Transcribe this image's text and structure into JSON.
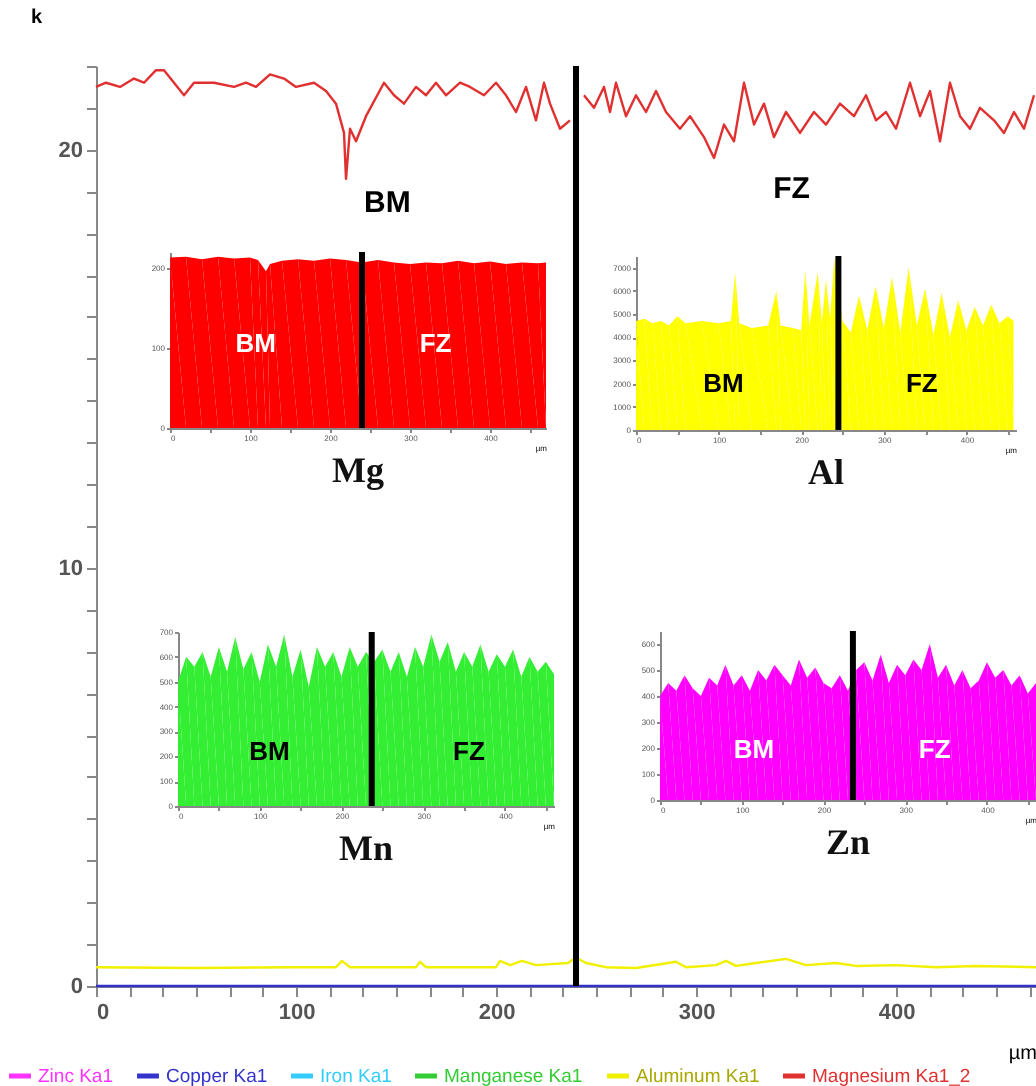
{
  "chart_data": [
    {
      "type": "line",
      "ylabel": "k",
      "xlabel": "µm",
      "legend": "bottom",
      "grid": false,
      "xlim": [
        0,
        470
      ],
      "ylim": [
        0,
        22
      ],
      "xticks": [
        0,
        {
          "value": 16.7,
          "label": null
        },
        {
          "value": 33.3,
          "label": null
        },
        {
          "value": 50,
          "label": null
        },
        {
          "value": 66.7,
          "label": null
        },
        {
          "value": 83.3,
          "label": null
        },
        100,
        {
          "value": 116.7,
          "label": null
        },
        {
          "value": 133.3,
          "label": null
        },
        {
          "value": 150,
          "label": null
        },
        {
          "value": 166.7,
          "label": null
        },
        {
          "value": 183.3,
          "label": null
        },
        200,
        {
          "value": 216.7,
          "label": null
        },
        {
          "value": 233.3,
          "label": null
        },
        {
          "value": 250,
          "label": null
        },
        {
          "value": 266.7,
          "label": null
        },
        {
          "value": 283.3,
          "label": null
        },
        300,
        {
          "value": 316.7,
          "label": null
        },
        {
          "value": 333.3,
          "label": null
        },
        {
          "value": 350,
          "label": null
        },
        {
          "value": 366.7,
          "label": null
        },
        {
          "value": 383.3,
          "label": null
        },
        400,
        {
          "value": 416.7,
          "label": null
        },
        {
          "value": 433.3,
          "label": null
        },
        {
          "value": 450,
          "label": null
        },
        {
          "value": 466.7,
          "label": null
        }
      ],
      "yticks": [
        0,
        {
          "value": 1,
          "label": null
        },
        {
          "value": 2,
          "label": null
        },
        {
          "value": 3,
          "label": null
        },
        {
          "value": 4,
          "label": null
        },
        {
          "value": 5,
          "label": null
        },
        {
          "value": 6,
          "label": null
        },
        {
          "value": 7,
          "label": null
        },
        {
          "value": 8,
          "label": null
        },
        {
          "value": 9,
          "label": null
        },
        10,
        {
          "value": 11,
          "label": null
        },
        {
          "value": 12,
          "label": null
        },
        {
          "value": 13,
          "label": null
        },
        {
          "value": 14,
          "label": null
        },
        {
          "value": 15,
          "label": null
        },
        {
          "value": 16,
          "label": null
        },
        {
          "value": 17,
          "label": null
        },
        {
          "value": 18,
          "label": null
        },
        {
          "value": 19,
          "label": null
        },
        20,
        {
          "value": 21,
          "label": null
        },
        {
          "value": 22,
          "label": null
        }
      ],
      "series": [
        {
          "name": "Zinc Ka1",
          "color": "#ff33ff"
        },
        {
          "name": "Copper Ka1",
          "color": "#3333cc",
          "x": [
            0,
            470
          ],
          "values": [
            0,
            0
          ]
        },
        {
          "name": "Iron Ka1",
          "color": "#33ccff"
        },
        {
          "name": "Manganese Ka1",
          "color": "#33cc33"
        },
        {
          "name": "Aluminum Ka1",
          "color": "#f0f000",
          "x": [
            0,
            50,
            100,
            120,
            123,
            127,
            160,
            162,
            165,
            200,
            202,
            207,
            213,
            220,
            236,
            240,
            245,
            255,
            270,
            290,
            295,
            310,
            315,
            320,
            330,
            345,
            355,
            370,
            380,
            400,
            420,
            440,
            470
          ],
          "values": [
            0.45,
            0.43,
            0.45,
            0.45,
            0.6,
            0.45,
            0.45,
            0.58,
            0.45,
            0.45,
            0.6,
            0.5,
            0.6,
            0.5,
            0.55,
            0.68,
            0.55,
            0.45,
            0.43,
            0.58,
            0.45,
            0.5,
            0.6,
            0.48,
            0.55,
            0.65,
            0.5,
            0.55,
            0.48,
            0.5,
            0.45,
            0.48,
            0.45
          ]
        },
        {
          "name": "Magnesium Ka1_2",
          "color": "#e03030",
          "x": [
            0,
            5,
            12,
            19,
            24,
            30,
            34,
            39,
            44,
            49,
            59,
            69,
            75,
            80,
            87,
            94,
            100,
            109,
            115,
            120,
            124,
            125,
            127,
            130,
            135,
            144,
            149,
            154,
            160,
            165,
            170,
            175,
            182,
            187,
            194,
            200,
            205,
            210,
            215,
            220,
            224,
            227,
            232,
            237,
            240,
            244,
            249,
            254,
            257,
            260,
            265,
            270,
            275,
            280,
            285,
            292,
            297,
            304,
            309,
            314,
            319,
            324,
            329,
            334,
            339,
            345,
            352,
            359,
            365,
            372,
            379,
            385,
            390,
            395,
            400,
            407,
            412,
            417,
            422,
            427,
            432,
            437,
            442,
            449,
            454,
            459,
            464,
            469
          ],
          "values": [
            21.5,
            21.6,
            21.5,
            21.7,
            21.6,
            21.9,
            21.9,
            21.6,
            21.3,
            21.6,
            21.6,
            21.5,
            21.6,
            21.5,
            21.8,
            21.7,
            21.5,
            21.6,
            21.4,
            21.1,
            20.4,
            19.3,
            20.5,
            20.2,
            20.8,
            21.6,
            21.3,
            21.1,
            21.5,
            21.3,
            21.6,
            21.3,
            21.6,
            21.5,
            21.3,
            21.6,
            21.3,
            20.9,
            21.5,
            20.7,
            21.6,
            21.1,
            20.5,
            20.7,
            null,
            21.3,
            21.0,
            21.5,
            20.9,
            21.6,
            20.8,
            21.3,
            20.9,
            21.4,
            20.9,
            20.5,
            20.8,
            20.3,
            19.8,
            20.6,
            20.2,
            21.6,
            20.6,
            21.1,
            20.3,
            20.9,
            20.4,
            20.9,
            20.6,
            21.1,
            20.8,
            21.3,
            20.7,
            20.9,
            20.5,
            21.6,
            20.8,
            21.4,
            20.2,
            21.6,
            20.8,
            20.5,
            21.0,
            20.7,
            20.4,
            20.9,
            20.5,
            21.3
          ]
        }
      ],
      "ref_lines": [
        {
          "axis": "x",
          "value": 240,
          "color": "#000000"
        }
      ],
      "annotations": [
        "BM",
        "FZ"
      ]
    },
    {
      "type": "area",
      "title": "Mg",
      "xlabel": "µm",
      "grid": false,
      "xlim": [
        0,
        470
      ],
      "ylim": [
        0,
        220
      ],
      "xticks": [
        0,
        {
          "value": 50,
          "label": null
        },
        100,
        {
          "value": 150,
          "label": null
        },
        200,
        {
          "value": 250,
          "label": null
        },
        300,
        {
          "value": 350,
          "label": null
        },
        400,
        {
          "value": 450,
          "label": null
        }
      ],
      "yticks": [
        0,
        100,
        200
      ],
      "x": [
        0,
        20,
        40,
        60,
        80,
        100,
        110,
        120,
        125,
        140,
        160,
        180,
        200,
        220,
        240,
        260,
        280,
        300,
        320,
        340,
        360,
        380,
        400,
        420,
        440,
        460,
        470
      ],
      "series": [
        {
          "color": "#ff0000",
          "values": [
            213,
            214,
            211,
            214,
            212,
            213,
            210,
            196,
            205,
            209,
            211,
            209,
            212,
            210,
            207,
            210,
            207,
            205,
            207,
            206,
            209,
            206,
            208,
            205,
            207,
            206,
            207
          ]
        }
      ],
      "ref_lines": [
        {
          "axis": "x",
          "value": 240,
          "color": "#000000"
        }
      ],
      "annotations": [
        {
          "text": "BM",
          "x": 107,
          "y": 105
        },
        {
          "text": "FZ",
          "x": 332,
          "y": 105
        }
      ]
    },
    {
      "type": "area",
      "title": "Al",
      "xlabel": "µm",
      "grid": false,
      "xlim": [
        0,
        460
      ],
      "ylim": [
        0,
        7500
      ],
      "xticks": [
        0,
        {
          "value": 50,
          "label": null
        },
        100,
        {
          "value": 150,
          "label": null
        },
        200,
        {
          "value": 250,
          "label": null
        },
        300,
        {
          "value": 350,
          "label": null
        },
        400,
        {
          "value": 450,
          "label": null
        }
      ],
      "yticks": [
        0,
        1000,
        2000,
        3000,
        4000,
        5000,
        6000,
        7000
      ],
      "x": [
        0,
        10,
        20,
        30,
        40,
        50,
        60,
        80,
        100,
        115,
        120,
        125,
        140,
        160,
        170,
        175,
        190,
        200,
        205,
        210,
        220,
        225,
        230,
        235,
        240,
        250,
        260,
        270,
        280,
        290,
        300,
        310,
        320,
        330,
        340,
        350,
        360,
        370,
        380,
        390,
        400,
        410,
        420,
        430,
        440,
        450,
        457
      ],
      "series": [
        {
          "color": "#ffff00",
          "values": [
            4700,
            4800,
            4600,
            4700,
            4500,
            4900,
            4600,
            4700,
            4600,
            4700,
            6800,
            4600,
            4400,
            4500,
            6000,
            4500,
            4400,
            4300,
            6900,
            4500,
            6800,
            4600,
            6500,
            4800,
            7400,
            4700,
            4200,
            5800,
            4300,
            6200,
            4400,
            6600,
            4200,
            7000,
            4500,
            6100,
            4100,
            5900,
            4000,
            5600,
            4300,
            5300,
            4500,
            5400,
            4600,
            4900,
            4700
          ]
        }
      ],
      "ref_lines": [
        {
          "axis": "x",
          "value": 245,
          "color": "#000000"
        }
      ],
      "annotations": [
        {
          "text": "BM",
          "x": 106,
          "y": 1990
        },
        {
          "text": "FZ",
          "x": 346,
          "y": 1990
        }
      ]
    },
    {
      "type": "area",
      "title": "Mn",
      "xlabel": "µm",
      "grid": false,
      "xlim": [
        0,
        460
      ],
      "ylim": [
        0,
        700
      ],
      "xticks": [
        0,
        {
          "value": 50,
          "label": null
        },
        100,
        {
          "value": 150,
          "label": null
        },
        200,
        {
          "value": 250,
          "label": null
        },
        300,
        {
          "value": 350,
          "label": null
        },
        400,
        {
          "value": 450,
          "label": null
        }
      ],
      "yticks": [
        0,
        100,
        200,
        300,
        400,
        500,
        600,
        700
      ],
      "x": [
        0,
        10,
        20,
        30,
        40,
        50,
        60,
        70,
        80,
        90,
        100,
        110,
        120,
        130,
        140,
        150,
        160,
        170,
        180,
        190,
        200,
        210,
        220,
        230,
        240,
        250,
        260,
        270,
        280,
        290,
        300,
        310,
        320,
        330,
        340,
        350,
        360,
        370,
        380,
        390,
        400,
        410,
        420,
        430,
        440,
        450,
        460
      ],
      "series": [
        {
          "color": "#33ee33",
          "values": [
            500,
            600,
            560,
            620,
            520,
            640,
            540,
            680,
            550,
            620,
            500,
            650,
            560,
            690,
            520,
            630,
            480,
            640,
            560,
            620,
            520,
            640,
            560,
            620,
            580,
            630,
            540,
            620,
            520,
            640,
            560,
            690,
            580,
            660,
            540,
            620,
            560,
            650,
            540,
            610,
            560,
            630,
            520,
            600,
            540,
            580,
            530
          ]
        }
      ],
      "ref_lines": [
        {
          "axis": "x",
          "value": 237,
          "color": "#000000"
        }
      ],
      "annotations": [
        {
          "text": "BM",
          "x": 112,
          "y": 218
        },
        {
          "text": "FZ",
          "x": 356,
          "y": 218
        }
      ]
    },
    {
      "type": "area",
      "title": "Zn",
      "xlabel": "µm",
      "grid": false,
      "xlim": [
        0,
        460
      ],
      "ylim": [
        0,
        650
      ],
      "xticks": [
        0,
        {
          "value": 50,
          "label": null
        },
        100,
        {
          "value": 150,
          "label": null
        },
        200,
        {
          "value": 250,
          "label": null
        },
        300,
        {
          "value": 350,
          "label": null
        },
        400,
        {
          "value": 450,
          "label": null
        }
      ],
      "yticks": [
        0,
        100,
        200,
        300,
        400,
        500,
        600
      ],
      "x": [
        0,
        10,
        20,
        30,
        40,
        50,
        60,
        70,
        80,
        90,
        100,
        110,
        120,
        130,
        140,
        150,
        160,
        170,
        180,
        190,
        200,
        210,
        220,
        230,
        240,
        250,
        260,
        270,
        280,
        290,
        300,
        310,
        320,
        330,
        340,
        350,
        360,
        370,
        380,
        390,
        400,
        410,
        420,
        430,
        440,
        450,
        460
      ],
      "series": [
        {
          "color": "#ff00ff",
          "values": [
            400,
            450,
            420,
            480,
            430,
            400,
            470,
            440,
            520,
            440,
            480,
            420,
            500,
            460,
            520,
            480,
            440,
            540,
            470,
            510,
            450,
            430,
            480,
            420,
            500,
            530,
            460,
            560,
            450,
            520,
            480,
            540,
            500,
            600,
            470,
            520,
            440,
            500,
            430,
            460,
            530,
            470,
            500,
            440,
            480,
            410,
            450
          ]
        }
      ],
      "ref_lines": [
        {
          "axis": "x",
          "value": 236,
          "color": "#000000"
        }
      ],
      "annotations": [
        {
          "text": "BM",
          "x": 115,
          "y": 192
        },
        {
          "text": "FZ",
          "x": 336,
          "y": 192
        }
      ]
    }
  ]
}
